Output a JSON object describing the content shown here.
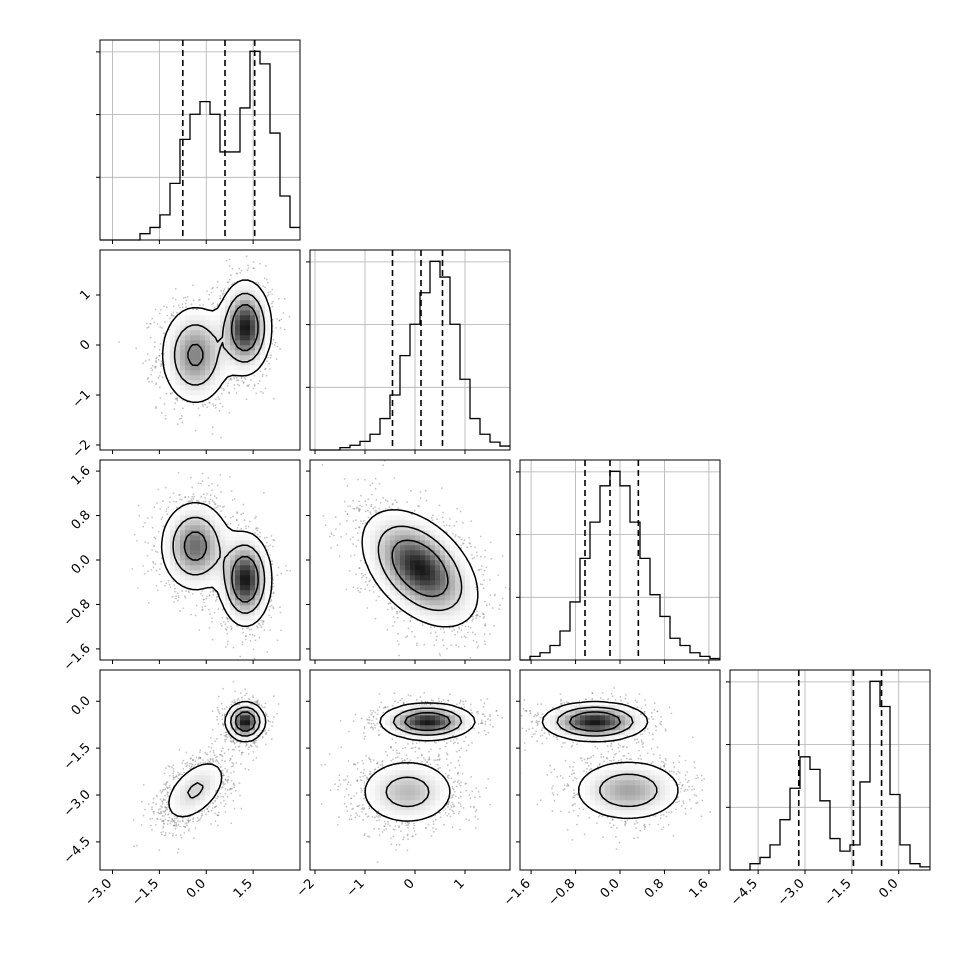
{
  "chart_data": {
    "type": "corner",
    "n_params": 4,
    "grid": true,
    "params": [
      {
        "range": [
          -3.4,
          3.0
        ],
        "ticks": [
          "−3.0",
          "−1.5",
          "0.0",
          "1.5"
        ],
        "tick_values": [
          -3.0,
          -1.5,
          0.0,
          1.5
        ],
        "quantiles": [
          -0.75,
          0.6,
          1.55
        ]
      },
      {
        "range": [
          -2.1,
          1.9
        ],
        "ticks": [
          "−2",
          "−1",
          "0",
          "1"
        ],
        "tick_values": [
          -2,
          -1,
          0,
          1
        ],
        "quantiles": [
          -0.45,
          0.12,
          0.55
        ]
      },
      {
        "range": [
          -1.8,
          1.8
        ],
        "ticks": [
          "−1.6",
          "−0.8",
          "0.0",
          "0.8",
          "1.6"
        ],
        "tick_values": [
          -1.6,
          -0.8,
          0.0,
          0.8,
          1.6
        ],
        "quantiles": [
          -0.63,
          -0.18,
          0.33
        ]
      },
      {
        "range": [
          -5.4,
          1.0
        ],
        "ticks": [
          "−4.5",
          "−3.0",
          "−1.5",
          "0.0"
        ],
        "tick_values": [
          -4.5,
          -3.0,
          -1.5,
          0.0
        ],
        "quantiles": [
          -3.2,
          -1.45,
          -0.55
        ]
      }
    ],
    "histograms": [
      {
        "param": 0,
        "edges_start": -3.4,
        "bin_width": 0.32,
        "counts": [
          0,
          0,
          0,
          0,
          1,
          2,
          4,
          9,
          16,
          20,
          22,
          20,
          14,
          14,
          21,
          30,
          28,
          17,
          7,
          2
        ]
      },
      {
        "param": 1,
        "edges_start": -2.1,
        "bin_width": 0.2,
        "counts": [
          0,
          0,
          0,
          0.3,
          0.6,
          1.1,
          2,
          4,
          7,
          12,
          16,
          20,
          24,
          22,
          16,
          9,
          4,
          2,
          1,
          0.5
        ]
      },
      {
        "param": 2,
        "edges_start": -1.8,
        "bin_width": 0.18,
        "counts": [
          0,
          0.5,
          1,
          2,
          4,
          8,
          14,
          19,
          24,
          26,
          24,
          19,
          14,
          9,
          6,
          3,
          2,
          1,
          0.5,
          0.2
        ]
      },
      {
        "param": 3,
        "edges_start": -5.4,
        "bin_width": 0.32,
        "counts": [
          0,
          0,
          1,
          2,
          4,
          8,
          13,
          18,
          16,
          11,
          5,
          3,
          4,
          14,
          30,
          26,
          12,
          4,
          1,
          0.5
        ]
      }
    ],
    "pair_modes": [
      {
        "x": 0,
        "y": 1,
        "modes": [
          {
            "cx": -0.35,
            "cy": -0.2,
            "sx": 0.55,
            "sy": 0.5,
            "rho": 0.0,
            "w": 0.5
          },
          {
            "cx": 1.25,
            "cy": 0.35,
            "sx": 0.4,
            "sy": 0.45,
            "rho": 0.0,
            "w": 0.5
          }
        ]
      },
      {
        "x": 0,
        "y": 2,
        "modes": [
          {
            "cx": -0.35,
            "cy": 0.25,
            "sx": 0.55,
            "sy": 0.4,
            "rho": 0.0,
            "w": 0.5
          },
          {
            "cx": 1.25,
            "cy": -0.35,
            "sx": 0.4,
            "sy": 0.4,
            "rho": 0.0,
            "w": 0.5
          }
        ]
      },
      {
        "x": 1,
        "y": 2,
        "modes": [
          {
            "cx": 0.1,
            "cy": -0.15,
            "sx": 0.55,
            "sy": 0.5,
            "rho": -0.45,
            "w": 1.0
          }
        ]
      },
      {
        "x": 0,
        "y": 3,
        "modes": [
          {
            "cx": -0.35,
            "cy": -2.85,
            "sx": 0.55,
            "sy": 0.55,
            "rho": 0.5,
            "w": 0.5
          },
          {
            "cx": 1.25,
            "cy": -0.65,
            "sx": 0.3,
            "sy": 0.3,
            "rho": 0.0,
            "w": 0.5
          }
        ]
      },
      {
        "x": 1,
        "y": 3,
        "modes": [
          {
            "cx": -0.15,
            "cy": -2.9,
            "sx": 0.5,
            "sy": 0.55,
            "rho": 0.0,
            "w": 0.5
          },
          {
            "cx": 0.25,
            "cy": -0.65,
            "sx": 0.45,
            "sy": 0.28,
            "rho": 0.0,
            "w": 0.5
          }
        ]
      },
      {
        "x": 2,
        "y": 3,
        "modes": [
          {
            "cx": -0.45,
            "cy": -0.65,
            "sx": 0.45,
            "sy": 0.3,
            "rho": 0.0,
            "w": 0.5
          },
          {
            "cx": 0.15,
            "cy": -2.85,
            "sx": 0.5,
            "sy": 0.5,
            "rho": 0.0,
            "w": 0.5
          }
        ]
      }
    ],
    "colors": {
      "line": "#000000",
      "grid": "#b0b0b0",
      "points": "#7f7f7f",
      "shade": "#000000"
    }
  }
}
